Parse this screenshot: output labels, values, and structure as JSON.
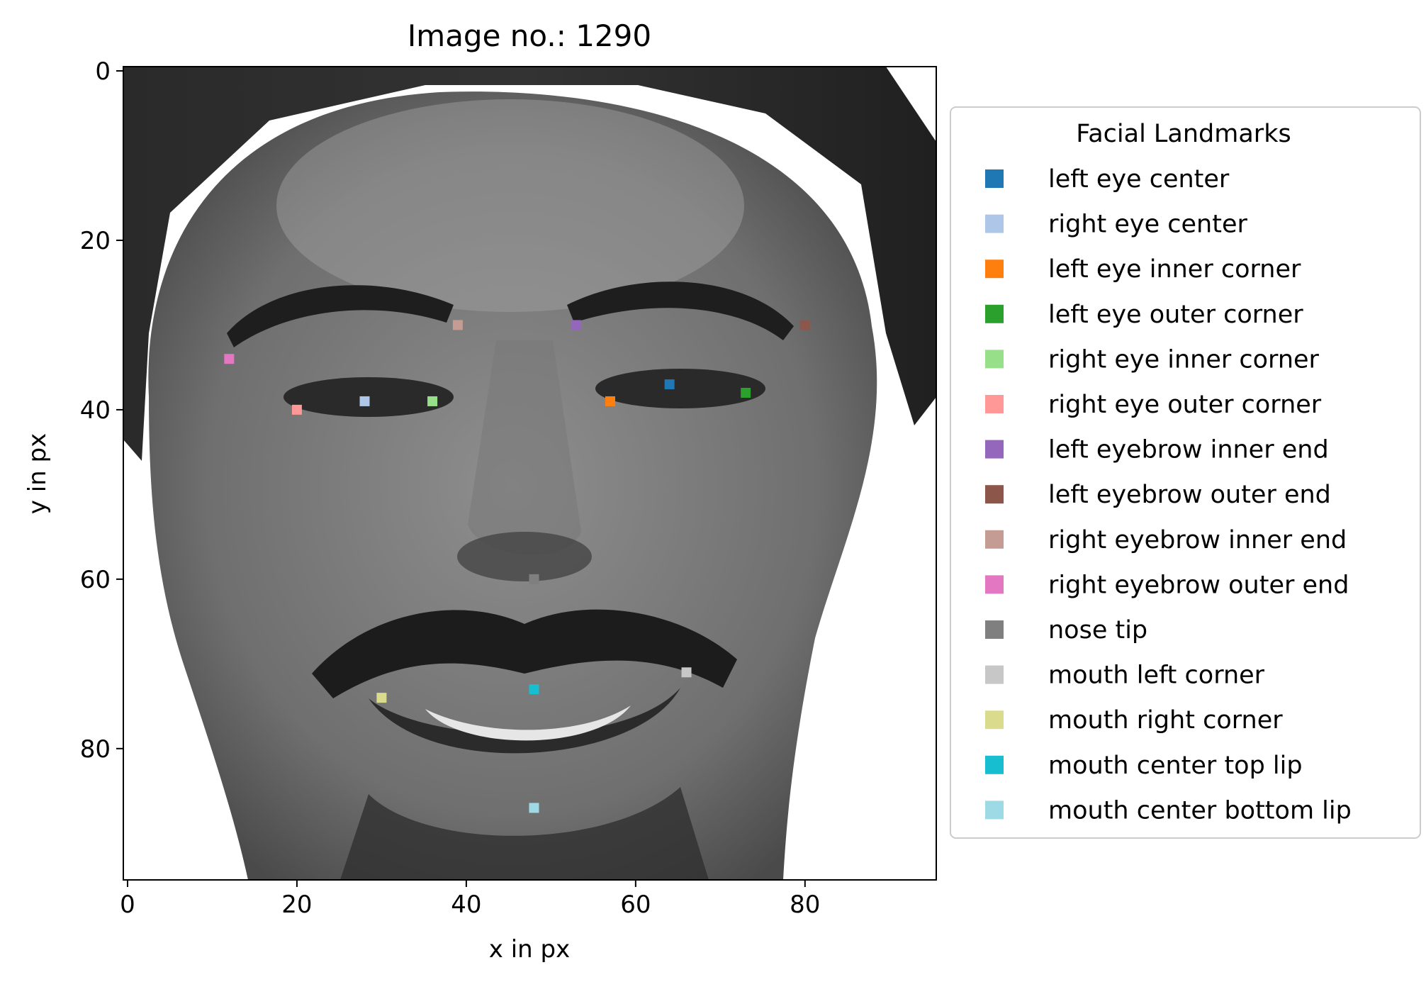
{
  "chart_data": {
    "type": "scatter",
    "title": "Image no.: 1290",
    "xlabel": "x in px",
    "ylabel": "y in px",
    "xlim": [
      -0.5,
      95.5
    ],
    "ylim": [
      95.5,
      -0.5
    ],
    "y_inverted": true,
    "grid": false,
    "background": "grayscale photo of a smiling man's face with a mustache, 96x96 px",
    "xticks": [
      0,
      20,
      40,
      60,
      80
    ],
    "yticks": [
      0,
      20,
      40,
      60,
      80
    ],
    "legend": {
      "title": "Facial Landmarks",
      "placement": "outside-right"
    },
    "series": [
      {
        "name": "left eye center",
        "color": "#1f77b4",
        "x": 64,
        "y": 37
      },
      {
        "name": "right eye center",
        "color": "#aec7e8",
        "x": 28,
        "y": 39
      },
      {
        "name": "left eye inner corner",
        "color": "#ff7f0e",
        "x": 57,
        "y": 39
      },
      {
        "name": "left eye outer corner",
        "color": "#2ca02c",
        "x": 73,
        "y": 38
      },
      {
        "name": "right eye inner corner",
        "color": "#98df8a",
        "x": 36,
        "y": 39
      },
      {
        "name": "right eye outer corner",
        "color": "#ff9896",
        "x": 20,
        "y": 40
      },
      {
        "name": "left eyebrow inner end",
        "color": "#9467bd",
        "x": 53,
        "y": 30
      },
      {
        "name": "left eyebrow outer end",
        "color": "#8c564b",
        "x": 80,
        "y": 30
      },
      {
        "name": "right eyebrow inner end",
        "color": "#c49c94",
        "x": 39,
        "y": 30
      },
      {
        "name": "right eyebrow outer end",
        "color": "#e377c2",
        "x": 12,
        "y": 34
      },
      {
        "name": "nose tip",
        "color": "#7f7f7f",
        "x": 48,
        "y": 60
      },
      {
        "name": "mouth left corner",
        "color": "#c7c7c7",
        "x": 66,
        "y": 71
      },
      {
        "name": "mouth right corner",
        "color": "#dbdb8d",
        "x": 30,
        "y": 74
      },
      {
        "name": "mouth center top lip",
        "color": "#17becf",
        "x": 48,
        "y": 73
      },
      {
        "name": "mouth center bottom lip",
        "color": "#9edae5",
        "x": 48,
        "y": 87
      }
    ]
  }
}
